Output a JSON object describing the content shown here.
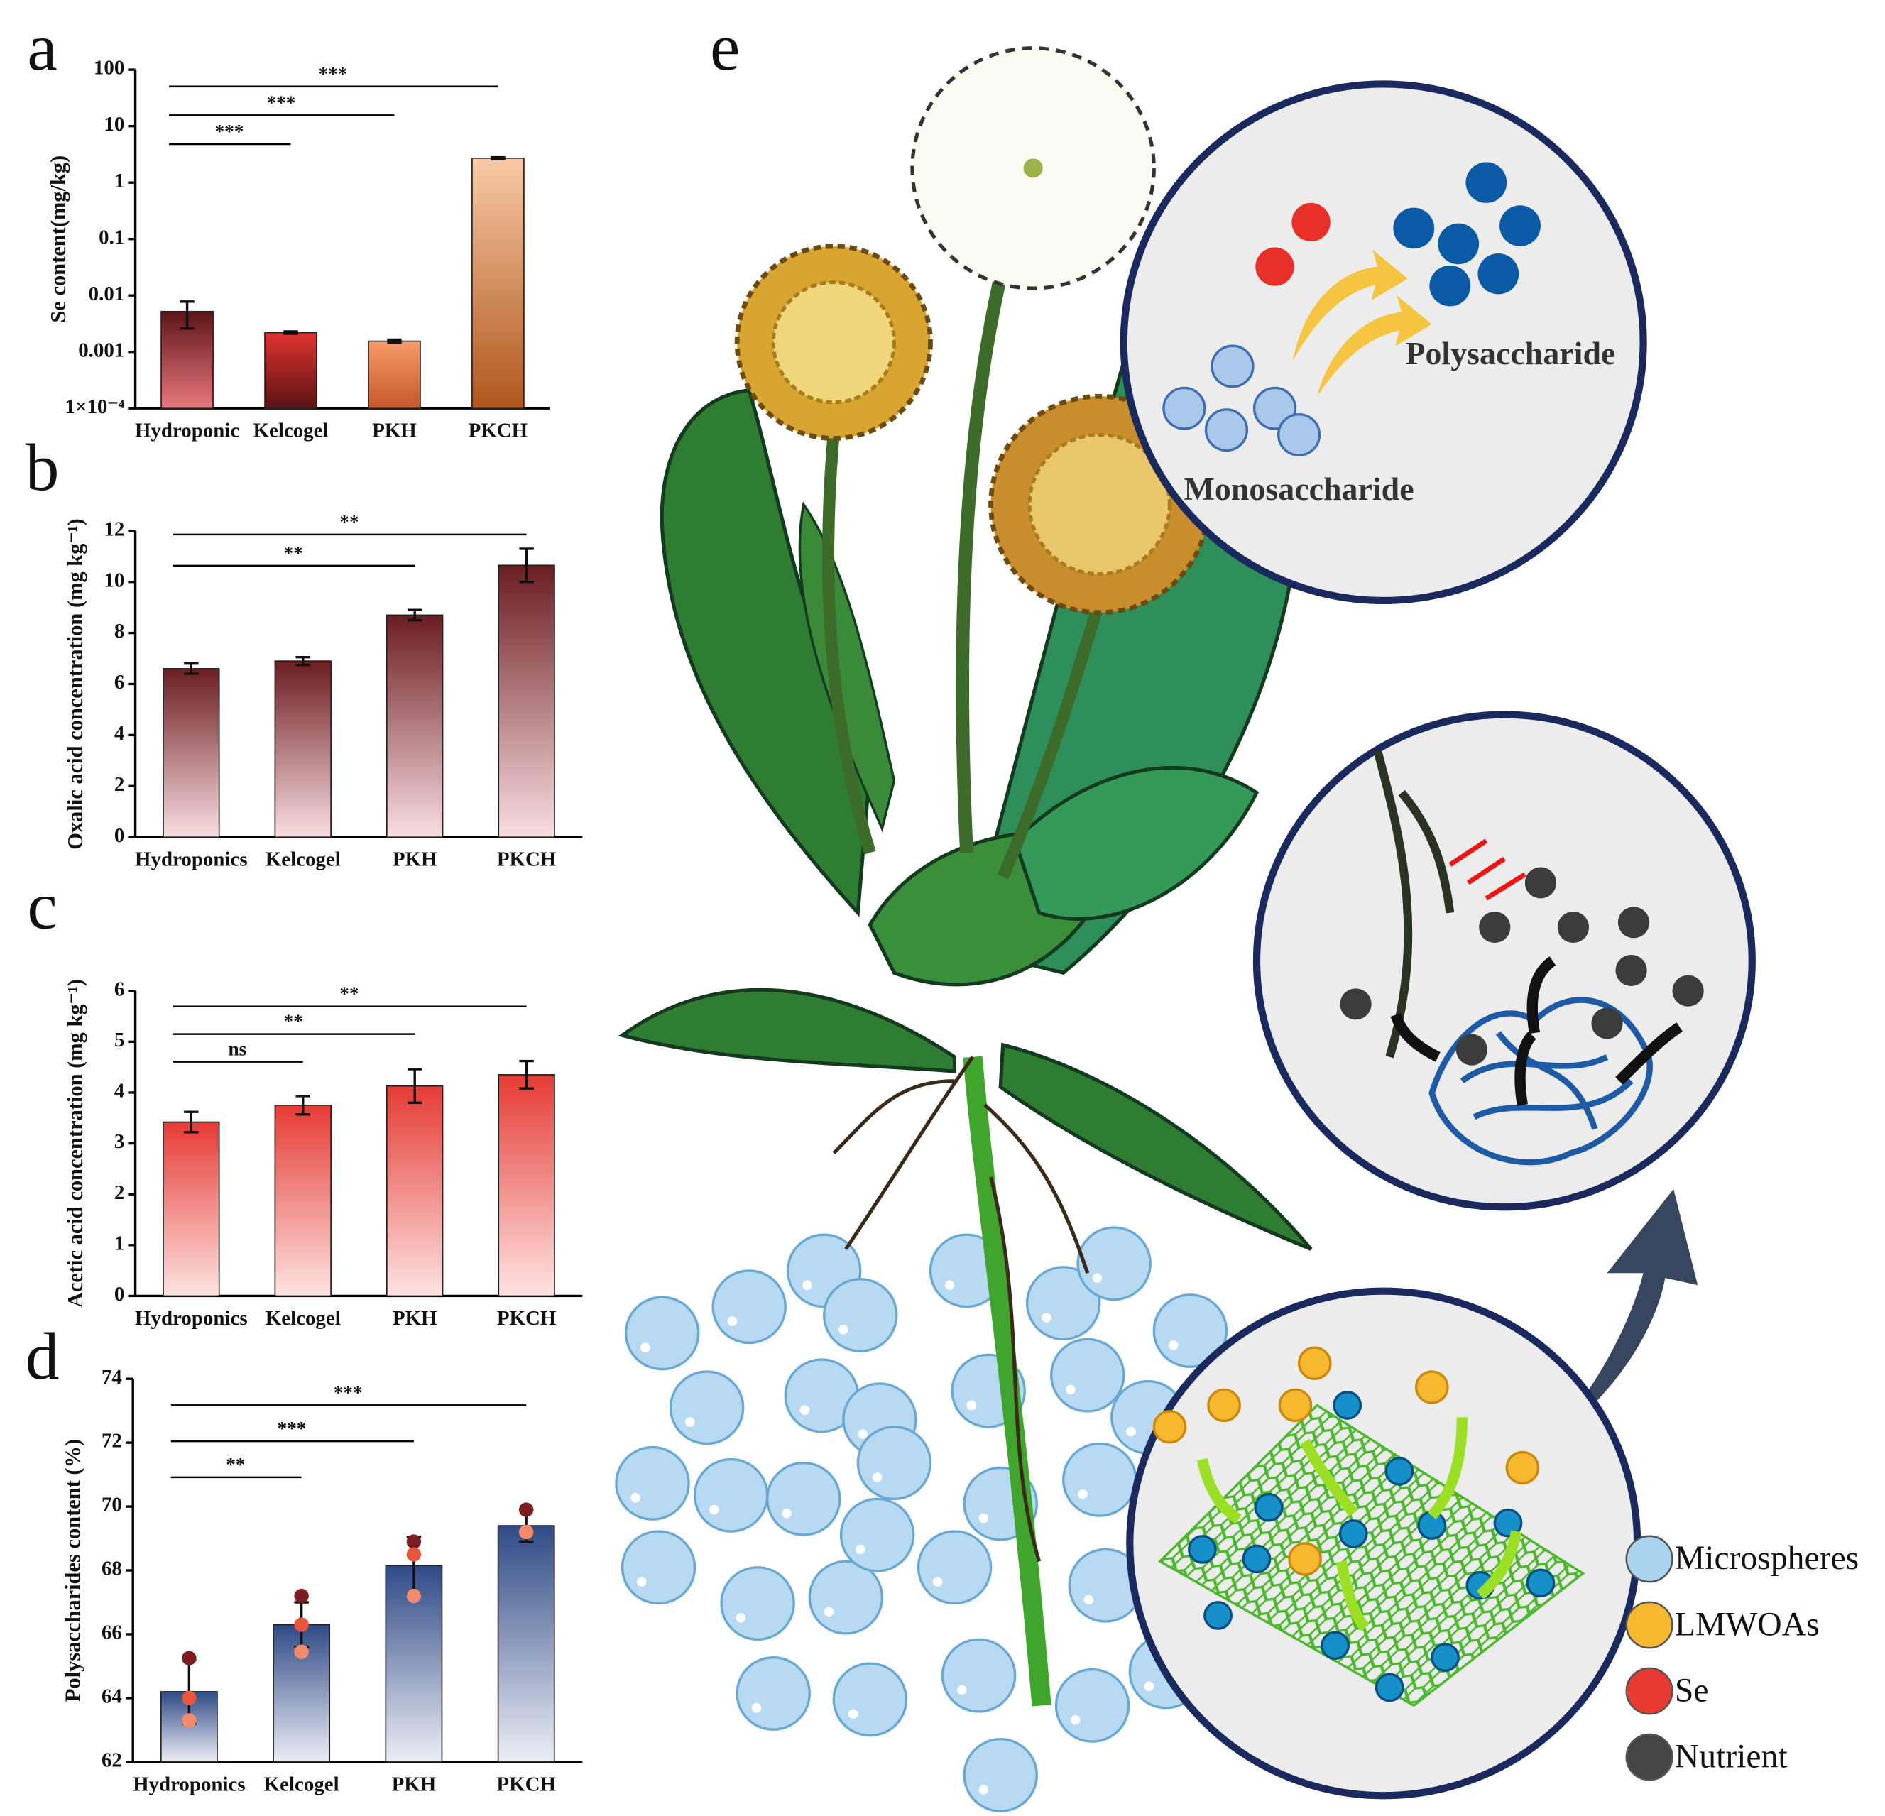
{
  "chart_data": [
    {
      "type": "bar",
      "panel": "a",
      "y_label": "Se content(mg/kg)",
      "log_scale": true,
      "categories": [
        "Hydroponic",
        "Kelcogel",
        "PKH",
        "PKCH"
      ],
      "values": [
        0.0052,
        0.0022,
        0.00155,
        2.7
      ],
      "errors": [
        0.0026,
        0.0001,
        0.0001,
        0.1
      ],
      "colors": [
        [
          "#5e1518",
          "#e9787e"
        ],
        [
          "#e0342f",
          "#5a1214"
        ],
        [
          "#f59a6a",
          "#c8582a"
        ],
        [
          "#f6c9a6",
          "#b0561c"
        ]
      ],
      "ylim": [
        0.0001,
        100
      ],
      "yticks": [
        100,
        10,
        1,
        0.1,
        0.01,
        0.001,
        {
          "value": 0.0001,
          "label": "1×10⁻⁴"
        }
      ],
      "significance": [
        {
          "groups": [
            "Hydroponic",
            "Kelcogel"
          ],
          "label": "***"
        },
        {
          "groups": [
            "Hydroponic",
            "PKH"
          ],
          "label": "***"
        },
        {
          "groups": [
            "Hydroponic",
            "PKCH"
          ],
          "label": "***"
        }
      ]
    },
    {
      "type": "bar",
      "panel": "b",
      "y_label": "Oxalic acid concentration (mg kg⁻¹)",
      "log_scale": false,
      "categories": [
        "Hydroponics",
        "Kelcogel",
        "PKH",
        "PKCH"
      ],
      "values": [
        6.6,
        6.9,
        8.7,
        10.65
      ],
      "errors": [
        0.2,
        0.15,
        0.2,
        0.65
      ],
      "colors": [
        [
          "#6b1d21",
          "#f9dde0"
        ],
        [
          "#6b1d21",
          "#f9dde0"
        ],
        [
          "#6b1d21",
          "#f9dde0"
        ],
        [
          "#6b1d21",
          "#f9dde0"
        ]
      ],
      "ylim": [
        0,
        12
      ],
      "yticks": [
        0,
        2,
        4,
        6,
        8,
        10,
        12
      ],
      "significance": [
        {
          "groups": [
            "Hydroponics",
            "PKH"
          ],
          "label": "**"
        },
        {
          "groups": [
            "Hydroponics",
            "PKCH"
          ],
          "label": "**"
        }
      ]
    },
    {
      "type": "bar",
      "panel": "c",
      "y_label": "Acetic acid concentration (mg kg⁻¹)",
      "log_scale": false,
      "categories": [
        "Hydroponics",
        "Kelcogel",
        "PKH",
        "PKCH"
      ],
      "values": [
        3.42,
        3.75,
        4.13,
        4.35
      ],
      "errors": [
        0.2,
        0.18,
        0.33,
        0.27
      ],
      "colors": [
        [
          "#e63b35",
          "#fde3e1"
        ],
        [
          "#e63b35",
          "#fde3e1"
        ],
        [
          "#e63b35",
          "#fde3e1"
        ],
        [
          "#e63b35",
          "#fde3e1"
        ]
      ],
      "ylim": [
        0,
        6
      ],
      "yticks": [
        0,
        1,
        2,
        3,
        4,
        5,
        6
      ],
      "significance": [
        {
          "groups": [
            "Hydroponics",
            "Kelcogel"
          ],
          "label": "ns"
        },
        {
          "groups": [
            "Hydroponics",
            "PKH"
          ],
          "label": "**"
        },
        {
          "groups": [
            "Hydroponics",
            "PKCH"
          ],
          "label": "**"
        }
      ]
    },
    {
      "type": "bar",
      "panel": "d",
      "y_label": "Polysaccharides content (%)",
      "log_scale": false,
      "categories": [
        "Hydroponics",
        "Kelcogel",
        "PKH",
        "PKCH"
      ],
      "values": [
        64.2,
        66.3,
        68.15,
        69.4
      ],
      "errors": [
        1.0,
        0.7,
        0.9,
        0.5
      ],
      "points": [
        [
          65.25,
          64.0,
          63.3
        ],
        [
          67.2,
          66.3,
          65.45
        ],
        [
          68.9,
          68.5,
          67.2
        ],
        [
          69.9,
          69.2,
          69.2
        ]
      ],
      "point_colors": [
        "#7a1c20",
        "#e8553e",
        "#f28b6a"
      ],
      "colors": [
        [
          "#2f4a86",
          "#eceef5"
        ],
        [
          "#2f4a86",
          "#eceef5"
        ],
        [
          "#2f4a86",
          "#eceef5"
        ],
        [
          "#2f4a86",
          "#eceef5"
        ]
      ],
      "ylim": [
        62,
        74
      ],
      "yticks": [
        62,
        64,
        66,
        68,
        70,
        72,
        74
      ],
      "significance": [
        {
          "groups": [
            "Hydroponics",
            "Kelcogel"
          ],
          "label": "**"
        },
        {
          "groups": [
            "Hydroponics",
            "PKH"
          ],
          "label": "***"
        },
        {
          "groups": [
            "Hydroponics",
            "PKCH"
          ],
          "label": "***"
        }
      ]
    }
  ],
  "panel_e": {
    "label": "e",
    "product": "Polysaccharide",
    "reactant": "Monosaccharide",
    "legend": [
      "Microspheres",
      "LMWOAs",
      "Se",
      "Nutrient"
    ]
  }
}
